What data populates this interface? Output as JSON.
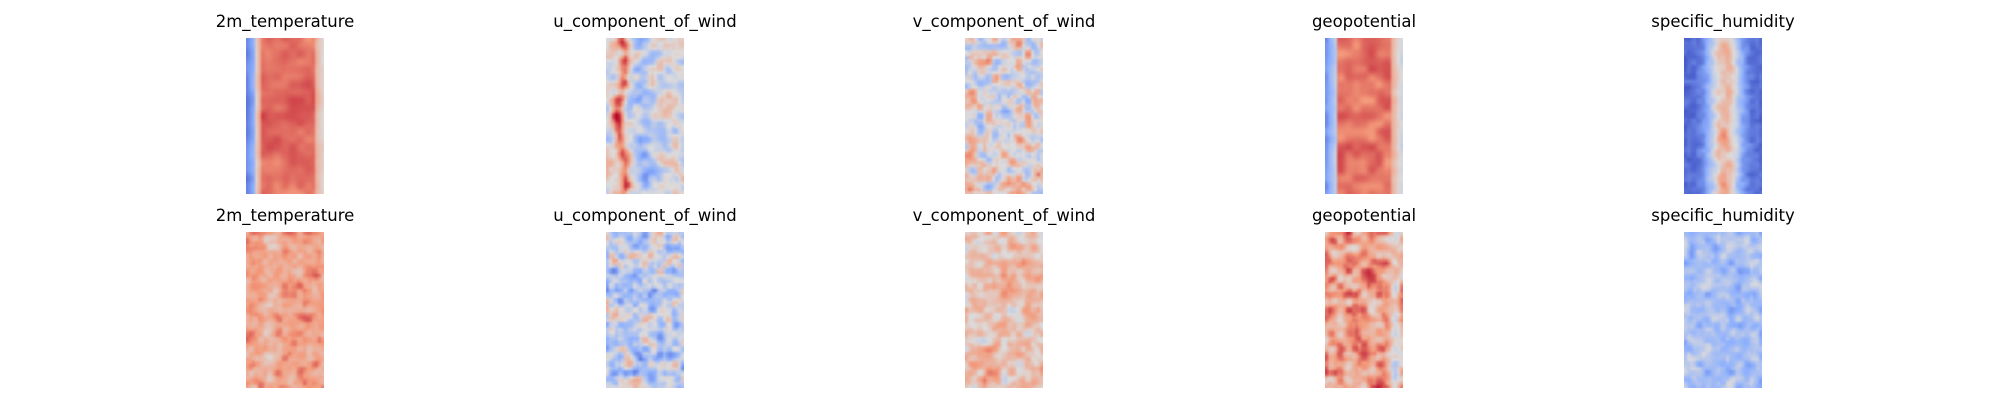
{
  "chart_data": {
    "type": "heatmap",
    "colormap": "coolwarm",
    "colormap_stops": [
      "#3b4cc0",
      "#8db0fe",
      "#dddcdc",
      "#f49a7b",
      "#b40426"
    ],
    "grid": false,
    "axes_visible": false,
    "layout": {
      "rows": 2,
      "cols": 5
    },
    "panels": [
      {
        "title": "2m_temperature",
        "row": 1,
        "col": 1,
        "pattern": "temp_mean"
      },
      {
        "title": "u_component_of_wind",
        "row": 1,
        "col": 2,
        "pattern": "uwind_mean"
      },
      {
        "title": "v_component_of_wind",
        "row": 1,
        "col": 3,
        "pattern": "vwind_mean"
      },
      {
        "title": "geopotential",
        "row": 1,
        "col": 4,
        "pattern": "geo_mean"
      },
      {
        "title": "specific_humidity",
        "row": 1,
        "col": 5,
        "pattern": "hum_mean"
      },
      {
        "title": "2m_temperature",
        "row": 2,
        "col": 1,
        "pattern": "temp_std"
      },
      {
        "title": "u_component_of_wind",
        "row": 2,
        "col": 2,
        "pattern": "uwind_std"
      },
      {
        "title": "v_component_of_wind",
        "row": 2,
        "col": 3,
        "pattern": "vwind_std"
      },
      {
        "title": "geopotential",
        "row": 2,
        "col": 4,
        "pattern": "geo_std"
      },
      {
        "title": "specific_humidity",
        "row": 2,
        "col": 5,
        "pattern": "hum_std"
      }
    ]
  }
}
